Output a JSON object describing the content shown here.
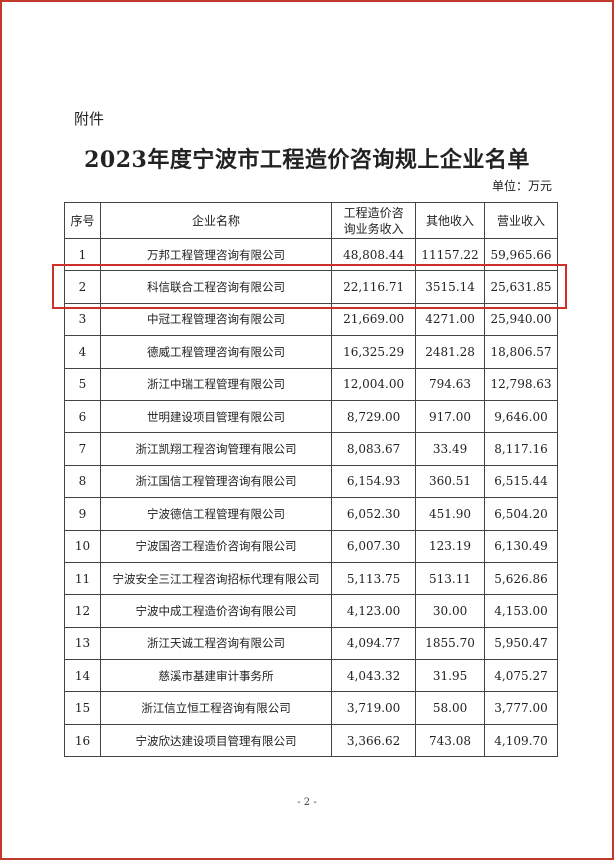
{
  "attachment_label": "附件",
  "title": "2023年度宁波市工程造价咨询规上企业名单",
  "unit": "单位：万元",
  "table": {
    "headers": [
      "序号",
      "企业名称",
      "工程造价咨询业务收入",
      "其他收入",
      "营业收入"
    ],
    "rows": [
      [
        "1",
        "万邦工程管理咨询有限公司",
        "48,808.44",
        "11157.22",
        "59,965.66"
      ],
      [
        "2",
        "科信联合工程咨询有限公司",
        "22,116.71",
        "3515.14",
        "25,631.85"
      ],
      [
        "3",
        "中冠工程管理咨询有限公司",
        "21,669.00",
        "4271.00",
        "25,940.00"
      ],
      [
        "4",
        "德威工程管理咨询有限公司",
        "16,325.29",
        "2481.28",
        "18,806.57"
      ],
      [
        "5",
        "浙江中瑞工程管理有限公司",
        "12,004.00",
        "794.63",
        "12,798.63"
      ],
      [
        "6",
        "世明建设项目管理有限公司",
        "8,729.00",
        "917.00",
        "9,646.00"
      ],
      [
        "7",
        "浙江凯翔工程咨询管理有限公司",
        "8,083.67",
        "33.49",
        "8,117.16"
      ],
      [
        "8",
        "浙江国信工程管理咨询有限公司",
        "6,154.93",
        "360.51",
        "6,515.44"
      ],
      [
        "9",
        "宁波德信工程管理有限公司",
        "6,052.30",
        "451.90",
        "6,504.20"
      ],
      [
        "10",
        "宁波国咨工程造价咨询有限公司",
        "6,007.30",
        "123.19",
        "6,130.49"
      ],
      [
        "11",
        "宁波安全三江工程咨询招标代理有限公司",
        "5,113.75",
        "513.11",
        "5,626.86"
      ],
      [
        "12",
        "宁波中成工程造价咨询有限公司",
        "4,123.00",
        "30.00",
        "4,153.00"
      ],
      [
        "13",
        "浙江天诚工程咨询有限公司",
        "4,094.77",
        "1855.70",
        "5,950.47"
      ],
      [
        "14",
        "慈溪市基建审计事务所",
        "4,043.32",
        "31.95",
        "4,075.27"
      ],
      [
        "15",
        "浙江信立恒工程咨询有限公司",
        "3,719.00",
        "58.00",
        "3,777.00"
      ],
      [
        "16",
        "宁波欣达建设项目管理有限公司",
        "3,366.62",
        "743.08",
        "4,109.70"
      ]
    ],
    "highlighted_row": 2
  },
  "page_number": "- 2 -",
  "colors": {
    "highlight": "#d0302a",
    "frame": "#c0392b"
  }
}
